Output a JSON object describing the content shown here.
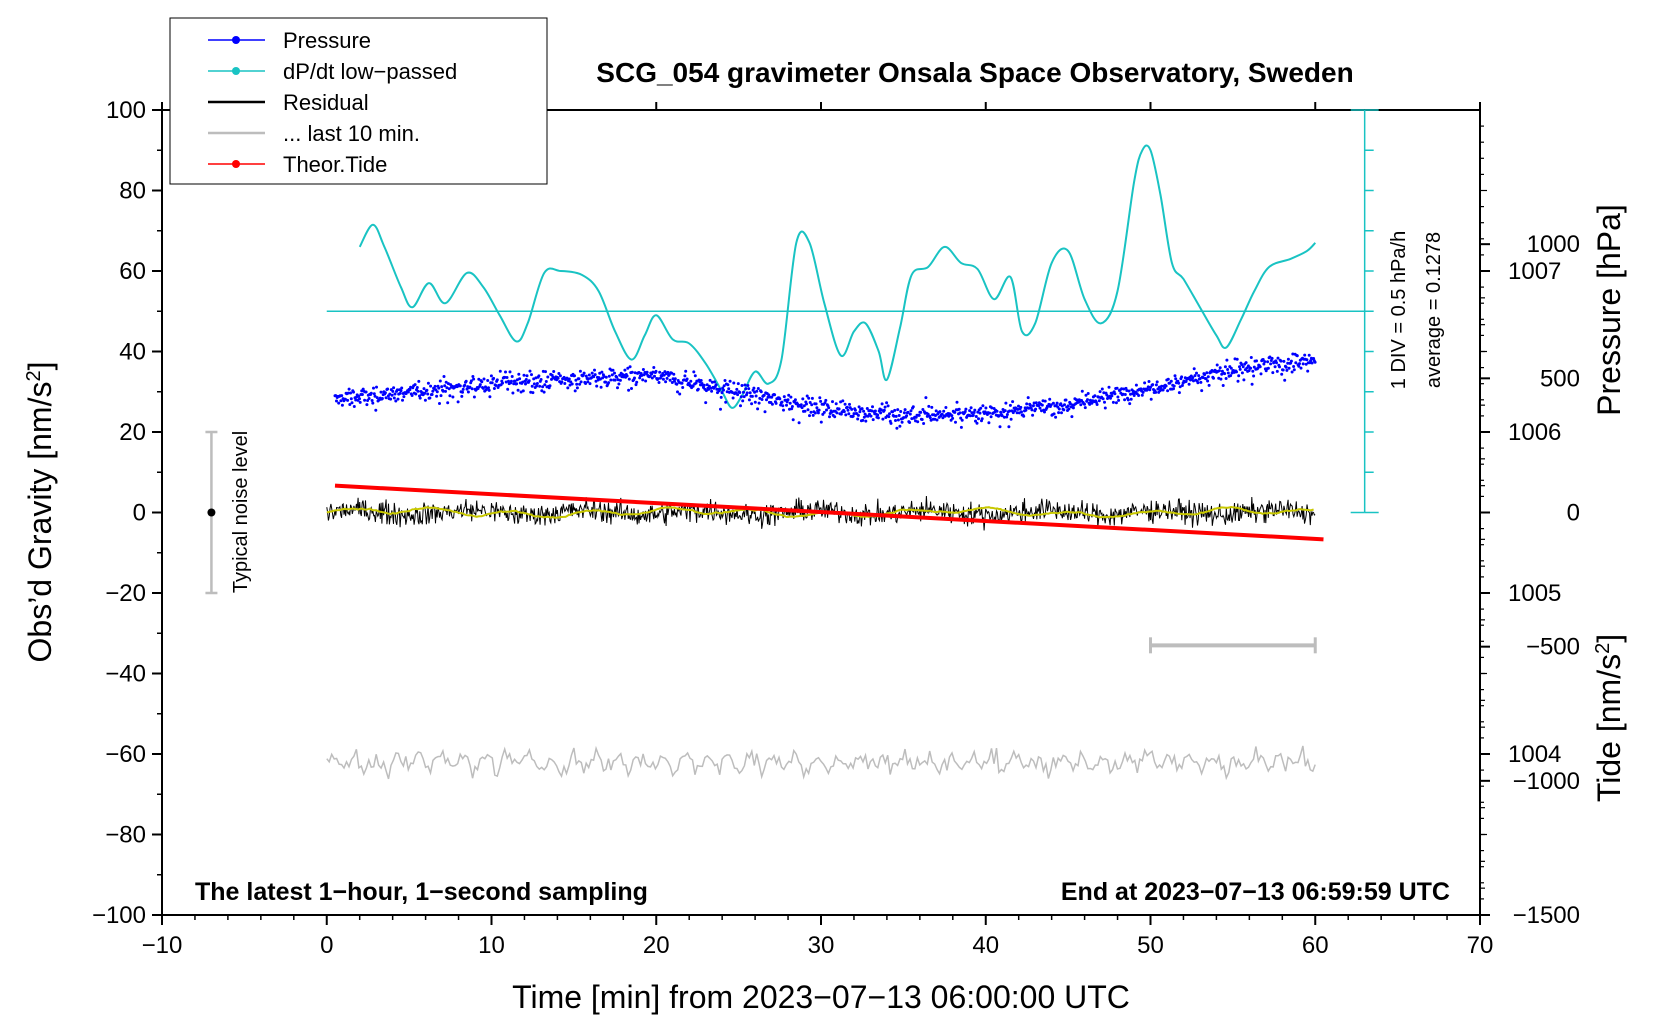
{
  "chart_data": {
    "type": "line",
    "title": "SCG_054 gravimeter Onsala Space Observatory, Sweden",
    "xlabel": "Time [min] from 2023−07−13 06:00:00 UTC",
    "ylabel_left": "Obs’d Gravity [nm/s",
    "ylabel_left_sup": "2",
    "ylabel_left_end": "]",
    "ylabel_right_pressure": "Pressure [hPa]",
    "ylabel_right_tide": "Tide [nm/s",
    "ylabel_right_tide_sup": "2",
    "ylabel_right_tide_end": "]",
    "xlim": [
      -10,
      70
    ],
    "ylim": [
      -100,
      100
    ],
    "pressure_range": [
      1003,
      1008
    ],
    "tide_range": [
      -1500,
      1500
    ],
    "x_ticks": [
      "−10",
      "0",
      "10",
      "20",
      "30",
      "40",
      "50",
      "60",
      "70"
    ],
    "x_tick_values": [
      -10,
      0,
      10,
      20,
      30,
      40,
      50,
      60,
      70
    ],
    "y_ticks": [
      "100",
      "80",
      "60",
      "40",
      "20",
      "0",
      "−20",
      "−40",
      "−60",
      "−80",
      "−100"
    ],
    "y_tick_values": [
      100,
      80,
      60,
      40,
      20,
      0,
      -20,
      -40,
      -60,
      -80,
      -100
    ],
    "pressure_ticks": [
      "1007",
      "1006",
      "1005",
      "1004"
    ],
    "pressure_tick_values": [
      1007,
      1006,
      1005,
      1004
    ],
    "tide_ticks": [
      "1000",
      "500",
      "0",
      "−500",
      "−1000",
      "−1500"
    ],
    "tide_tick_values": [
      1000,
      500,
      0,
      -500,
      -1000,
      -1500
    ],
    "legend": [
      {
        "label": "Pressure",
        "color": "#0000ff",
        "marker": true
      },
      {
        "label": "dP/dt low−passed",
        "color": "#19c3c3",
        "marker": true
      },
      {
        "label": "Residual",
        "color": "#000000",
        "marker": false
      },
      {
        "label": "... last 10 min.",
        "color": "#bdbdbd",
        "marker": false
      },
      {
        "label": "Theor.Tide",
        "color": "#ff0000",
        "marker": true
      }
    ],
    "pressure_series": {
      "name": "Pressure",
      "color": "#0000ff",
      "x": [
        0.5,
        5,
        10,
        15,
        20,
        25,
        30,
        35,
        40,
        45,
        50,
        55,
        60
      ],
      "y": [
        1006.2,
        1006.25,
        1006.3,
        1006.33,
        1006.35,
        1006.25,
        1006.15,
        1006.1,
        1006.12,
        1006.17,
        1006.28,
        1006.38,
        1006.45
      ]
    },
    "dpdt_series": {
      "name": "dP/dt low−passed",
      "color": "#19c3c3",
      "baseline": 50,
      "x": [
        2,
        2.8,
        3.5,
        4.5,
        5.2,
        6.2,
        7.2,
        8.5,
        9.5,
        10.5,
        11.5,
        12.2,
        13.2,
        14.2,
        15.5,
        16.5,
        17.5,
        18.5,
        19.3,
        20,
        21,
        22,
        23,
        24,
        24.6,
        25.2,
        26,
        26.8,
        27.6,
        28.5,
        29.3,
        30.2,
        31.2,
        32,
        32.7,
        33.5,
        34,
        34.8,
        35.5,
        36.5,
        37.5,
        38.5,
        39.5,
        40.5,
        41.5,
        42.2,
        43,
        44,
        45,
        46,
        47,
        48,
        49,
        49.5,
        50,
        50.6,
        51.3,
        52,
        53,
        54,
        54.6,
        55.5,
        56.3,
        57.2,
        58.5,
        59.5,
        60
      ],
      "y": [
        66,
        71.5,
        66,
        56,
        51,
        57,
        52,
        59.5,
        56,
        49,
        42.5,
        47,
        59.5,
        60,
        59,
        55,
        45,
        38,
        44,
        49,
        43,
        42,
        37,
        30,
        26,
        29,
        35,
        32,
        38,
        67,
        67,
        52,
        39,
        45,
        47,
        40,
        33,
        46,
        59,
        61,
        66,
        62,
        60.5,
        53,
        58.5,
        45,
        47,
        62,
        65,
        53,
        47,
        55,
        82,
        90,
        90,
        79,
        62,
        58,
        51,
        44,
        41,
        48,
        55,
        61,
        63,
        65,
        67
      ]
    },
    "residual_series": {
      "name": "Residual",
      "color": "#000000",
      "x_range": [
        0,
        60
      ],
      "center": 0,
      "amplitude": 3
    },
    "smoothed_residual_series": {
      "name": "Residual smoothed",
      "color": "#c8c800",
      "x_range": [
        0,
        60
      ]
    },
    "last10_series": {
      "name": "... last 10 min.",
      "color": "#bdbdbd",
      "x_range": [
        0,
        60
      ],
      "offset": -62,
      "scale_bar_x": [
        50,
        60
      ],
      "scale_bar_y": -33
    },
    "tide_series": {
      "name": "Theor.Tide",
      "color": "#ff0000",
      "x": [
        0.5,
        60.5
      ],
      "y": [
        100,
        -100
      ]
    },
    "noise_bar": {
      "label": "Typical noise level",
      "x": -7,
      "y": [
        -20,
        20
      ],
      "center": 0
    },
    "dpdt_scale": {
      "label_div": "1 DIV = 0.5 hPa/h",
      "label_avg": "average = 0.1278",
      "x": 63,
      "y_range": [
        0,
        100
      ],
      "divisions": 10
    },
    "note_left": "The latest 1−hour, 1−second sampling",
    "note_right": "End at 2023−07−13 06:59:59 UTC"
  }
}
